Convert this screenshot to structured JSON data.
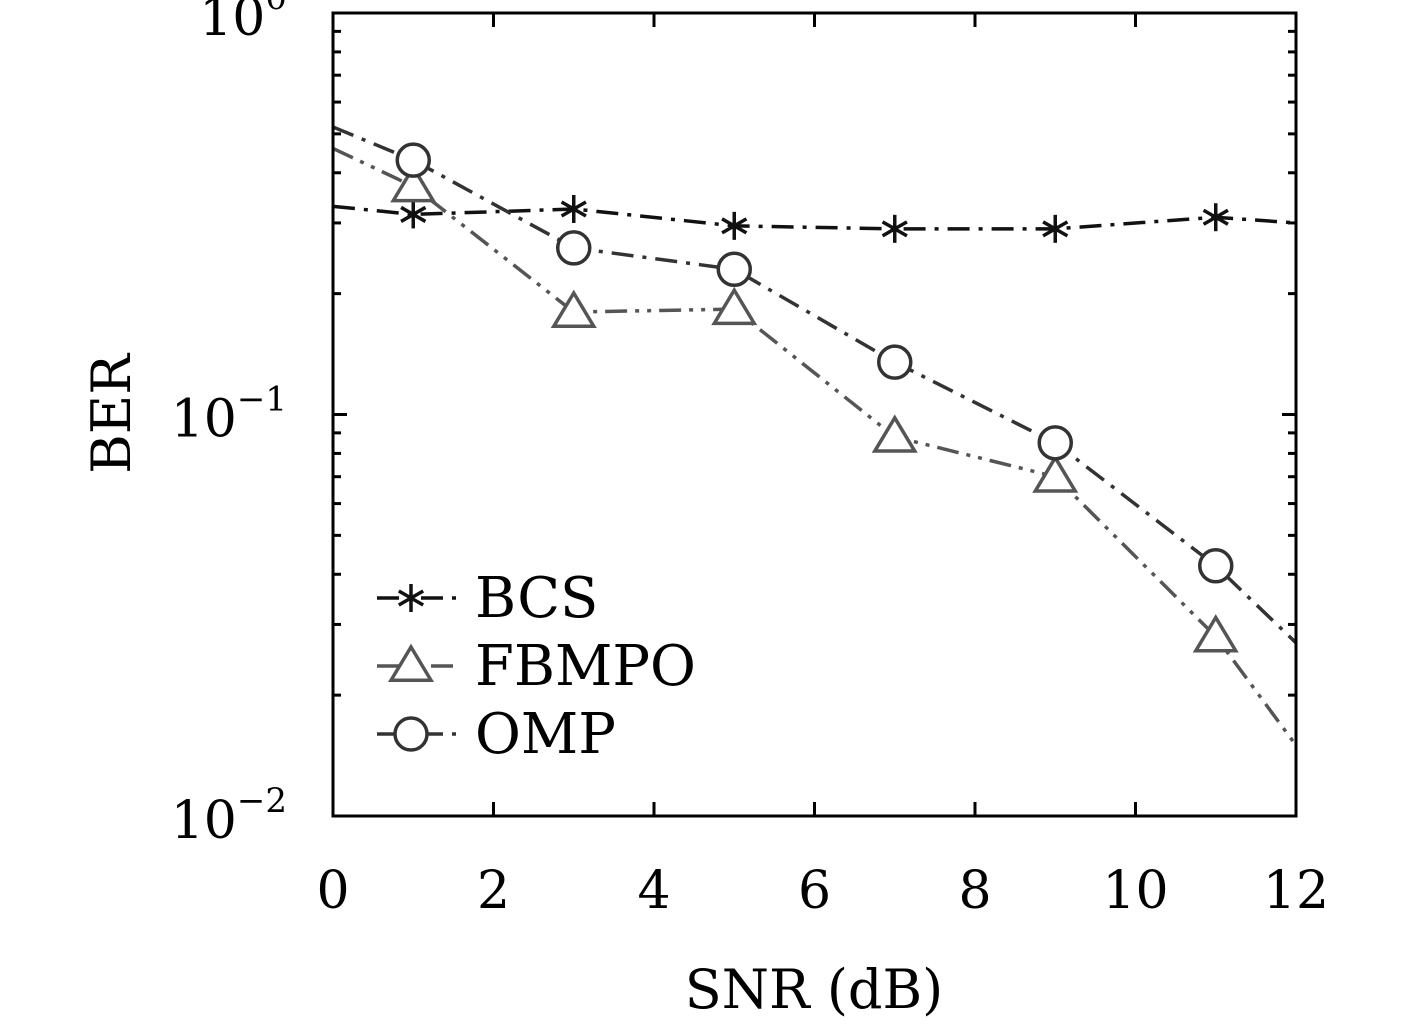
{
  "chart_data": {
    "type": "line",
    "title": "",
    "xlabel": "SNR (dB)",
    "ylabel": "BER",
    "xlim": [
      0,
      12
    ],
    "ylim": [
      0.01,
      1
    ],
    "yscale": "log",
    "xticks": [
      0,
      2,
      4,
      6,
      8,
      10,
      12
    ],
    "xtick_labels": [
      "0",
      "2",
      "4",
      "6",
      "8",
      "10",
      "12"
    ],
    "yticks": [
      {
        "base": "10",
        "exp": "0",
        "value": 1
      },
      {
        "base": "10",
        "exp": "−1",
        "value": 0.1
      },
      {
        "base": "10",
        "exp": "−2",
        "value": 0.01
      }
    ],
    "grid": false,
    "legend_position": "lower-left",
    "series": [
      {
        "name": "BCS",
        "marker": "asterisk",
        "color": "#111111",
        "dash": "dash-dot",
        "x": [
          0,
          1,
          3,
          5,
          7,
          9,
          11,
          12
        ],
        "y": [
          0.33,
          0.315,
          0.325,
          0.295,
          0.29,
          0.29,
          0.31,
          0.3
        ]
      },
      {
        "name": "FBMPO",
        "marker": "triangle",
        "color": "#555555",
        "dash": "dash-dot-dot",
        "x": [
          0,
          1,
          3,
          5,
          7,
          9,
          11,
          12
        ],
        "y": [
          0.46,
          0.37,
          0.18,
          0.183,
          0.088,
          0.07,
          0.028,
          0.015
        ]
      },
      {
        "name": "OMP",
        "marker": "circle",
        "color": "#333333",
        "dash": "dash-dot",
        "x": [
          0,
          1,
          3,
          5,
          7,
          9,
          11,
          12
        ],
        "y": [
          0.52,
          0.43,
          0.26,
          0.23,
          0.135,
          0.085,
          0.042,
          0.027
        ]
      }
    ]
  }
}
